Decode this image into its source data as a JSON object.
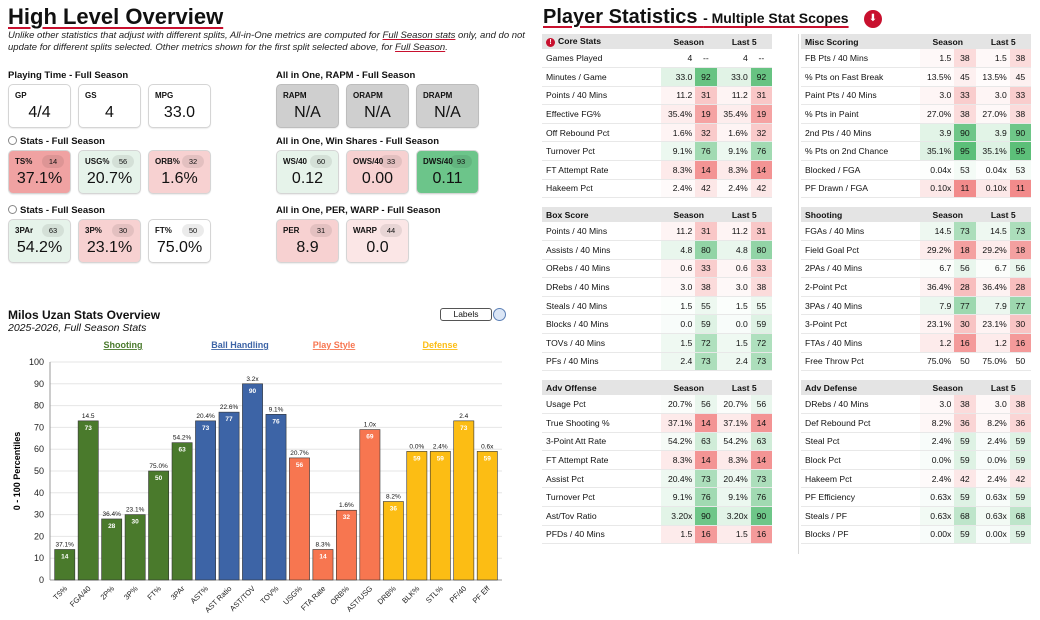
{
  "overview": {
    "title": "High Level Overview",
    "note_lead": "Unlike other statistics that adjust with different splits, All-in-One metrics are computed for ",
    "note_link1": "Full Season stats",
    "note_mid": " only, and do not update for different splits selected. Other metrics shown for the first split selected above, for ",
    "note_link2": "Full Season",
    "note_end": "."
  },
  "groups": [
    {
      "id": "playing-time",
      "title": "Playing Time - Full Season",
      "radio": false,
      "boxes": [
        {
          "label": "GP",
          "value": "4/4",
          "pct": null,
          "color": "white"
        },
        {
          "label": "GS",
          "value": "4",
          "pct": null,
          "color": "white"
        },
        {
          "label": "MPG",
          "value": "33.0",
          "pct": null,
          "color": "white"
        }
      ]
    },
    {
      "id": "rapm",
      "title": "All in One, RAPM - Full Season",
      "radio": false,
      "boxes": [
        {
          "label": "RAPM",
          "value": "N/A",
          "pct": null,
          "color": "gray"
        },
        {
          "label": "ORAPM",
          "value": "N/A",
          "pct": null,
          "color": "gray"
        },
        {
          "label": "DRAPM",
          "value": "N/A",
          "pct": null,
          "color": "gray"
        }
      ]
    },
    {
      "id": "stats-1",
      "title": "Stats - Full Season",
      "radio": true,
      "boxes": [
        {
          "label": "TS%",
          "value": "37.1%",
          "pct": "14",
          "color": "red"
        },
        {
          "label": "USG%",
          "value": "20.7%",
          "pct": "56",
          "color": "lgreen"
        },
        {
          "label": "ORB%",
          "value": "1.6%",
          "pct": "32",
          "color": "pink"
        }
      ]
    },
    {
      "id": "win-shares",
      "title": "All in One, Win Shares - Full Season",
      "radio": false,
      "boxes": [
        {
          "label": "WS/40",
          "value": "0.12",
          "pct": "60",
          "color": "lgreen"
        },
        {
          "label": "OWS/40",
          "value": "0.00",
          "pct": "33",
          "color": "pink"
        },
        {
          "label": "DWS/40",
          "value": "0.11",
          "pct": "93",
          "color": "green"
        }
      ]
    },
    {
      "id": "stats-2",
      "title": "Stats - Full Season",
      "radio": true,
      "boxes": [
        {
          "label": "3PAr",
          "value": "54.2%",
          "pct": "63",
          "color": "lgreen"
        },
        {
          "label": "3P%",
          "value": "23.1%",
          "pct": "30",
          "color": "pink"
        },
        {
          "label": "FT%",
          "value": "75.0%",
          "pct": "50",
          "color": "white"
        }
      ]
    },
    {
      "id": "per-warp",
      "title": "All in One, PER, WARP - Full Season",
      "radio": false,
      "boxes": [
        {
          "label": "PER",
          "value": "8.9",
          "pct": "31",
          "color": "pink"
        },
        {
          "label": "WARP",
          "value": "0.0",
          "pct": "44",
          "color": "lpink"
        }
      ]
    }
  ],
  "colors": {
    "gray": "#cfcfcf",
    "red": "#f0a2a2",
    "pink": "#f7d1d1",
    "lpink": "#fbe6e6",
    "lgreen": "#e6f3ea",
    "green": "#6cc58a",
    "white": "#ffffff",
    "shooting": "#4a7a2c",
    "ball_handling": "#3d64a6",
    "play_style": "#f77650",
    "defense": "#fcbd14",
    "accent": "#c8102e"
  },
  "chart_header": {
    "title": "Milos Uzan Stats Overview",
    "subtitle": "2025-2026, Full Season Stats",
    "labels_button": "Labels"
  },
  "chart_data": {
    "type": "bar",
    "ylabel": "0 - 100 Percentiles",
    "ylim": [
      0,
      100
    ],
    "yticks": [
      0,
      10,
      20,
      30,
      40,
      50,
      60,
      70,
      80,
      90,
      100
    ],
    "legend": [
      {
        "name": "Shooting",
        "color": "#4a7a2c"
      },
      {
        "name": "Ball Handling",
        "color": "#3d64a6"
      },
      {
        "name": "Play Style",
        "color": "#f77650"
      },
      {
        "name": "Defense",
        "color": "#fcbd14"
      }
    ],
    "bars": [
      {
        "category": "TS%",
        "group": "Shooting",
        "value": 14,
        "label": "37.1%"
      },
      {
        "category": "FGA/40",
        "group": "Shooting",
        "value": 73,
        "label": "14.5"
      },
      {
        "category": "2P%",
        "group": "Shooting",
        "value": 28,
        "label": "36.4%"
      },
      {
        "category": "3P%",
        "group": "Shooting",
        "value": 30,
        "label": "23.1%"
      },
      {
        "category": "FT%",
        "group": "Shooting",
        "value": 50,
        "label": "75.0%"
      },
      {
        "category": "3PAr",
        "group": "Shooting",
        "value": 63,
        "label": "54.2%"
      },
      {
        "category": "AST%",
        "group": "Ball Handling",
        "value": 73,
        "label": "20.4%"
      },
      {
        "category": "AST Ratio",
        "group": "Ball Handling",
        "value": 77,
        "label": "22.6%"
      },
      {
        "category": "AST/TOV",
        "group": "Ball Handling",
        "value": 90,
        "label": "3.2x"
      },
      {
        "category": "TOV%",
        "group": "Ball Handling",
        "value": 76,
        "label": "9.1%"
      },
      {
        "category": "USG%",
        "group": "Play Style",
        "value": 56,
        "label": "20.7%"
      },
      {
        "category": "FTA Rate",
        "group": "Play Style",
        "value": 14,
        "label": "8.3%"
      },
      {
        "category": "ORB%",
        "group": "Play Style",
        "value": 32,
        "label": "1.6%"
      },
      {
        "category": "AST/USG",
        "group": "Play Style",
        "value": 69,
        "label": "1.0x"
      },
      {
        "category": "DRB%",
        "group": "Defense",
        "value": 36,
        "label": "8.2%"
      },
      {
        "category": "BLK%",
        "group": "Defense",
        "value": 59,
        "label": "0.0%"
      },
      {
        "category": "STL%",
        "group": "Defense",
        "value": 59,
        "label": "2.4%"
      },
      {
        "category": "PF/40",
        "group": "Defense",
        "value": 73,
        "label": "2.4"
      },
      {
        "category": "PF Eff",
        "group": "Defense",
        "value": 59,
        "label": "0.6x"
      }
    ]
  },
  "player_stats": {
    "title": "Player Statistics",
    "subtitle": "- Multiple Stat Scopes",
    "col_season": "Season",
    "col_last5": "Last 5",
    "sections": [
      {
        "name": "Core Stats",
        "info": true,
        "rows": [
          {
            "stat": "Games Played",
            "season": "4",
            "season_pct": "--",
            "last5": "4",
            "last5_pct": "--"
          },
          {
            "stat": "Minutes / Game",
            "season": "33.0",
            "season_pct": "92",
            "last5": "33.0",
            "last5_pct": "92"
          },
          {
            "stat": "Points / 40 Mins",
            "season": "11.2",
            "season_pct": "31",
            "last5": "11.2",
            "last5_pct": "31"
          },
          {
            "stat": "Effective FG%",
            "season": "35.4%",
            "season_pct": "19",
            "last5": "35.4%",
            "last5_pct": "19"
          },
          {
            "stat": "Off Rebound Pct",
            "season": "1.6%",
            "season_pct": "32",
            "last5": "1.6%",
            "last5_pct": "32"
          },
          {
            "stat": "Turnover Pct",
            "season": "9.1%",
            "season_pct": "76",
            "last5": "9.1%",
            "last5_pct": "76"
          },
          {
            "stat": "FT Attempt Rate",
            "season": "8.3%",
            "season_pct": "14",
            "last5": "8.3%",
            "last5_pct": "14"
          },
          {
            "stat": "Hakeem Pct",
            "season": "2.4%",
            "season_pct": "42",
            "last5": "2.4%",
            "last5_pct": "42"
          }
        ]
      },
      {
        "name": "Misc Scoring",
        "info": false,
        "rows": [
          {
            "stat": "FB Pts / 40 Mins",
            "season": "1.5",
            "season_pct": "38",
            "last5": "1.5",
            "last5_pct": "38"
          },
          {
            "stat": "% Pts on Fast Break",
            "season": "13.5%",
            "season_pct": "45",
            "last5": "13.5%",
            "last5_pct": "45"
          },
          {
            "stat": "Paint Pts / 40 Mins",
            "season": "3.0",
            "season_pct": "33",
            "last5": "3.0",
            "last5_pct": "33"
          },
          {
            "stat": "% Pts in Paint",
            "season": "27.0%",
            "season_pct": "38",
            "last5": "27.0%",
            "last5_pct": "38"
          },
          {
            "stat": "2nd Pts / 40 Mins",
            "season": "3.9",
            "season_pct": "90",
            "last5": "3.9",
            "last5_pct": "90"
          },
          {
            "stat": "% Pts on 2nd Chance",
            "season": "35.1%",
            "season_pct": "95",
            "last5": "35.1%",
            "last5_pct": "95"
          },
          {
            "stat": "Blocked / FGA",
            "season": "0.04x",
            "season_pct": "53",
            "last5": "0.04x",
            "last5_pct": "53"
          },
          {
            "stat": "PF Drawn / FGA",
            "season": "0.10x",
            "season_pct": "11",
            "last5": "0.10x",
            "last5_pct": "11"
          }
        ]
      },
      {
        "name": "Box Score",
        "info": false,
        "rows": [
          {
            "stat": "Points / 40 Mins",
            "season": "11.2",
            "season_pct": "31",
            "last5": "11.2",
            "last5_pct": "31"
          },
          {
            "stat": "Assists / 40 Mins",
            "season": "4.8",
            "season_pct": "80",
            "last5": "4.8",
            "last5_pct": "80"
          },
          {
            "stat": "ORebs / 40 Mins",
            "season": "0.6",
            "season_pct": "33",
            "last5": "0.6",
            "last5_pct": "33"
          },
          {
            "stat": "DRebs / 40 Mins",
            "season": "3.0",
            "season_pct": "38",
            "last5": "3.0",
            "last5_pct": "38"
          },
          {
            "stat": "Steals / 40 Mins",
            "season": "1.5",
            "season_pct": "55",
            "last5": "1.5",
            "last5_pct": "55"
          },
          {
            "stat": "Blocks / 40 Mins",
            "season": "0.0",
            "season_pct": "59",
            "last5": "0.0",
            "last5_pct": "59"
          },
          {
            "stat": "TOVs / 40 Mins",
            "season": "1.5",
            "season_pct": "72",
            "last5": "1.5",
            "last5_pct": "72"
          },
          {
            "stat": "PFs / 40 Mins",
            "season": "2.4",
            "season_pct": "73",
            "last5": "2.4",
            "last5_pct": "73"
          }
        ]
      },
      {
        "name": "Shooting",
        "info": false,
        "rows": [
          {
            "stat": "FGAs / 40 Mins",
            "season": "14.5",
            "season_pct": "73",
            "last5": "14.5",
            "last5_pct": "73"
          },
          {
            "stat": "Field Goal Pct",
            "season": "29.2%",
            "season_pct": "18",
            "last5": "29.2%",
            "last5_pct": "18"
          },
          {
            "stat": "2PAs / 40 Mins",
            "season": "6.7",
            "season_pct": "56",
            "last5": "6.7",
            "last5_pct": "56"
          },
          {
            "stat": "2-Point Pct",
            "season": "36.4%",
            "season_pct": "28",
            "last5": "36.4%",
            "last5_pct": "28"
          },
          {
            "stat": "3PAs / 40 Mins",
            "season": "7.9",
            "season_pct": "77",
            "last5": "7.9",
            "last5_pct": "77"
          },
          {
            "stat": "3-Point Pct",
            "season": "23.1%",
            "season_pct": "30",
            "last5": "23.1%",
            "last5_pct": "30"
          },
          {
            "stat": "FTAs / 40 Mins",
            "season": "1.2",
            "season_pct": "16",
            "last5": "1.2",
            "last5_pct": "16"
          },
          {
            "stat": "Free Throw Pct",
            "season": "75.0%",
            "season_pct": "50",
            "last5": "75.0%",
            "last5_pct": "50"
          }
        ]
      },
      {
        "name": "Adv Offense",
        "info": false,
        "rows": [
          {
            "stat": "Usage Pct",
            "season": "20.7%",
            "season_pct": "56",
            "last5": "20.7%",
            "last5_pct": "56"
          },
          {
            "stat": "True Shooting %",
            "season": "37.1%",
            "season_pct": "14",
            "last5": "37.1%",
            "last5_pct": "14"
          },
          {
            "stat": "3-Point Att Rate",
            "season": "54.2%",
            "season_pct": "63",
            "last5": "54.2%",
            "last5_pct": "63"
          },
          {
            "stat": "FT Attempt Rate",
            "season": "8.3%",
            "season_pct": "14",
            "last5": "8.3%",
            "last5_pct": "14"
          },
          {
            "stat": "Assist Pct",
            "season": "20.4%",
            "season_pct": "73",
            "last5": "20.4%",
            "last5_pct": "73"
          },
          {
            "stat": "Turnover Pct",
            "season": "9.1%",
            "season_pct": "76",
            "last5": "9.1%",
            "last5_pct": "76"
          },
          {
            "stat": "Ast/Tov Ratio",
            "season": "3.20x",
            "season_pct": "90",
            "last5": "3.20x",
            "last5_pct": "90"
          },
          {
            "stat": "PFDs / 40 Mins",
            "season": "1.5",
            "season_pct": "16",
            "last5": "1.5",
            "last5_pct": "16"
          }
        ]
      },
      {
        "name": "Adv Defense",
        "info": false,
        "rows": [
          {
            "stat": "DRebs / 40 Mins",
            "season": "3.0",
            "season_pct": "38",
            "last5": "3.0",
            "last5_pct": "38"
          },
          {
            "stat": "Def Rebound Pct",
            "season": "8.2%",
            "season_pct": "36",
            "last5": "8.2%",
            "last5_pct": "36"
          },
          {
            "stat": "Steal Pct",
            "season": "2.4%",
            "season_pct": "59",
            "last5": "2.4%",
            "last5_pct": "59"
          },
          {
            "stat": "Block Pct",
            "season": "0.0%",
            "season_pct": "59",
            "last5": "0.0%",
            "last5_pct": "59"
          },
          {
            "stat": "Hakeem Pct",
            "season": "2.4%",
            "season_pct": "42",
            "last5": "2.4%",
            "last5_pct": "42"
          },
          {
            "stat": "PF Efficiency",
            "season": "0.63x",
            "season_pct": "59",
            "last5": "0.63x",
            "last5_pct": "59"
          },
          {
            "stat": "Steals / PF",
            "season": "0.63x",
            "season_pct": "68",
            "last5": "0.63x",
            "last5_pct": "68"
          },
          {
            "stat": "Blocks / PF",
            "season": "0.00x",
            "season_pct": "59",
            "last5": "0.00x",
            "last5_pct": "59"
          }
        ]
      }
    ]
  }
}
